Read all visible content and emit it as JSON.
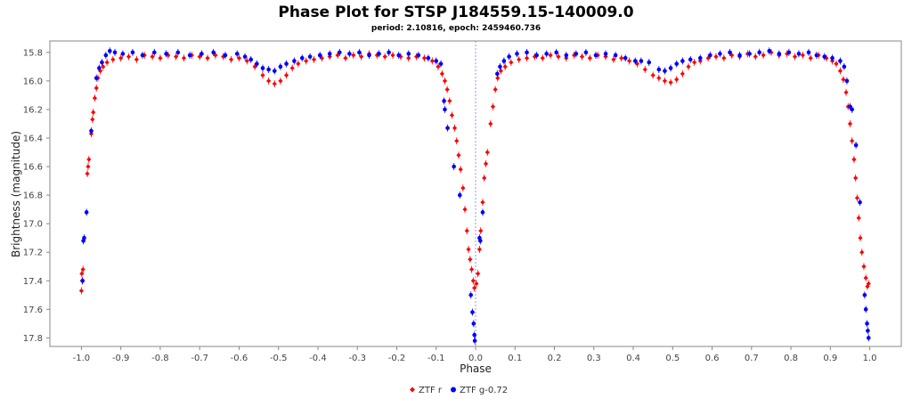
{
  "chart_data": {
    "type": "scatter",
    "title": "Phase Plot for STSP J184559.15-140009.0",
    "subtitle": "period: 2.10816, epoch: 2459460.736",
    "xlabel": "Phase",
    "ylabel": "Brightness (magnitude)",
    "xlim": [
      -1.08,
      1.08
    ],
    "ylim": [
      15.72,
      17.86
    ],
    "y_inverted": true,
    "x_ticks": [
      "-1.0",
      "-0.9",
      "-0.8",
      "-0.7",
      "-0.6",
      "-0.5",
      "-0.4",
      "-0.3",
      "-0.2",
      "-0.1",
      "0.0",
      "0.1",
      "0.2",
      "0.3",
      "0.4",
      "0.5",
      "0.6",
      "0.7",
      "0.8",
      "0.9",
      "1.0"
    ],
    "y_ticks": [
      "15.8",
      "16.0",
      "16.2",
      "16.4",
      "16.6",
      "16.8",
      "17.0",
      "17.2",
      "17.4",
      "17.6",
      "17.8"
    ],
    "grid": false,
    "zero_line": true,
    "legend_position": "bottom-center",
    "series": [
      {
        "name": "ZTF r",
        "color": "#ff0000",
        "shape": "diamond",
        "points": [
          [
            -1.0,
            17.47
          ],
          [
            -0.999,
            17.35
          ],
          [
            -0.998,
            17.4
          ],
          [
            -0.996,
            17.32
          ],
          [
            -0.985,
            16.65
          ],
          [
            -0.983,
            16.6
          ],
          [
            -0.981,
            16.55
          ],
          [
            -0.975,
            16.37
          ],
          [
            -0.972,
            16.27
          ],
          [
            -0.97,
            16.22
          ],
          [
            -0.966,
            16.12
          ],
          [
            -0.962,
            16.05
          ],
          [
            -0.958,
            15.98
          ],
          [
            -0.952,
            15.93
          ],
          [
            -0.945,
            15.9
          ],
          [
            -0.935,
            15.87
          ],
          [
            -0.92,
            15.85
          ],
          [
            -0.9,
            15.84
          ],
          [
            -0.88,
            15.83
          ],
          [
            -0.86,
            15.85
          ],
          [
            -0.84,
            15.82
          ],
          [
            -0.82,
            15.83
          ],
          [
            -0.8,
            15.84
          ],
          [
            -0.78,
            15.82
          ],
          [
            -0.76,
            15.83
          ],
          [
            -0.74,
            15.84
          ],
          [
            -0.72,
            15.82
          ],
          [
            -0.7,
            15.83
          ],
          [
            -0.68,
            15.84
          ],
          [
            -0.66,
            15.82
          ],
          [
            -0.64,
            15.83
          ],
          [
            -0.62,
            15.85
          ],
          [
            -0.6,
            15.84
          ],
          [
            -0.58,
            15.86
          ],
          [
            -0.56,
            15.9
          ],
          [
            -0.54,
            15.96
          ],
          [
            -0.525,
            16.0
          ],
          [
            -0.51,
            16.02
          ],
          [
            -0.495,
            16.0
          ],
          [
            -0.48,
            15.96
          ],
          [
            -0.465,
            15.91
          ],
          [
            -0.45,
            15.88
          ],
          [
            -0.43,
            15.86
          ],
          [
            -0.41,
            15.85
          ],
          [
            -0.39,
            15.84
          ],
          [
            -0.37,
            15.83
          ],
          [
            -0.35,
            15.82
          ],
          [
            -0.33,
            15.84
          ],
          [
            -0.31,
            15.82
          ],
          [
            -0.29,
            15.83
          ],
          [
            -0.27,
            15.81
          ],
          [
            -0.25,
            15.82
          ],
          [
            -0.23,
            15.83
          ],
          [
            -0.21,
            15.82
          ],
          [
            -0.19,
            15.83
          ],
          [
            -0.17,
            15.84
          ],
          [
            -0.15,
            15.83
          ],
          [
            -0.13,
            15.84
          ],
          [
            -0.11,
            15.86
          ],
          [
            -0.095,
            15.9
          ],
          [
            -0.085,
            15.95
          ],
          [
            -0.078,
            16.0
          ],
          [
            -0.072,
            16.06
          ],
          [
            -0.066,
            16.14
          ],
          [
            -0.06,
            16.24
          ],
          [
            -0.053,
            16.33
          ],
          [
            -0.048,
            16.42
          ],
          [
            -0.043,
            16.52
          ],
          [
            -0.038,
            16.62
          ],
          [
            -0.032,
            16.75
          ],
          [
            -0.027,
            16.9
          ],
          [
            -0.022,
            17.05
          ],
          [
            -0.018,
            17.18
          ],
          [
            -0.014,
            17.25
          ],
          [
            -0.01,
            17.32
          ],
          [
            -0.006,
            17.4
          ],
          [
            -0.003,
            17.45
          ],
          [
            0.002,
            17.42
          ],
          [
            0.006,
            17.35
          ],
          [
            0.01,
            17.18
          ],
          [
            0.013,
            17.05
          ],
          [
            0.018,
            16.85
          ],
          [
            0.022,
            16.68
          ],
          [
            0.026,
            16.58
          ],
          [
            0.03,
            16.5
          ],
          [
            0.038,
            16.3
          ],
          [
            0.044,
            16.18
          ],
          [
            0.05,
            16.06
          ],
          [
            0.056,
            15.98
          ],
          [
            0.064,
            15.93
          ],
          [
            0.075,
            15.9
          ],
          [
            0.09,
            15.87
          ],
          [
            0.11,
            15.85
          ],
          [
            0.13,
            15.84
          ],
          [
            0.15,
            15.83
          ],
          [
            0.17,
            15.84
          ],
          [
            0.19,
            15.82
          ],
          [
            0.21,
            15.83
          ],
          [
            0.23,
            15.84
          ],
          [
            0.25,
            15.82
          ],
          [
            0.27,
            15.83
          ],
          [
            0.29,
            15.84
          ],
          [
            0.31,
            15.82
          ],
          [
            0.33,
            15.83
          ],
          [
            0.35,
            15.85
          ],
          [
            0.37,
            15.84
          ],
          [
            0.39,
            15.86
          ],
          [
            0.41,
            15.88
          ],
          [
            0.43,
            15.92
          ],
          [
            0.45,
            15.96
          ],
          [
            0.465,
            15.98
          ],
          [
            0.48,
            16.0
          ],
          [
            0.495,
            16.01
          ],
          [
            0.51,
            15.99
          ],
          [
            0.525,
            15.95
          ],
          [
            0.54,
            15.9
          ],
          [
            0.555,
            15.87
          ],
          [
            0.57,
            15.86
          ],
          [
            0.59,
            15.84
          ],
          [
            0.61,
            15.83
          ],
          [
            0.63,
            15.84
          ],
          [
            0.65,
            15.82
          ],
          [
            0.67,
            15.83
          ],
          [
            0.69,
            15.81
          ],
          [
            0.71,
            15.83
          ],
          [
            0.73,
            15.82
          ],
          [
            0.75,
            15.8
          ],
          [
            0.77,
            15.82
          ],
          [
            0.79,
            15.81
          ],
          [
            0.81,
            15.83
          ],
          [
            0.83,
            15.82
          ],
          [
            0.85,
            15.84
          ],
          [
            0.87,
            15.82
          ],
          [
            0.89,
            15.84
          ],
          [
            0.905,
            15.86
          ],
          [
            0.915,
            15.88
          ],
          [
            0.925,
            15.93
          ],
          [
            0.933,
            15.99
          ],
          [
            0.94,
            16.08
          ],
          [
            0.945,
            16.18
          ],
          [
            0.95,
            16.3
          ],
          [
            0.955,
            16.42
          ],
          [
            0.96,
            16.55
          ],
          [
            0.964,
            16.68
          ],
          [
            0.968,
            16.82
          ],
          [
            0.972,
            16.96
          ],
          [
            0.976,
            17.1
          ],
          [
            0.98,
            17.2
          ],
          [
            0.985,
            17.3
          ],
          [
            0.99,
            17.38
          ],
          [
            0.994,
            17.44
          ],
          [
            0.997,
            17.42
          ]
        ]
      },
      {
        "name": "ZTF g-0.72",
        "color": "#0000ff",
        "shape": "circle",
        "points": [
          [
            -0.997,
            17.4
          ],
          [
            -0.995,
            17.12
          ],
          [
            -0.993,
            17.1
          ],
          [
            -0.987,
            16.92
          ],
          [
            -0.975,
            16.35
          ],
          [
            -0.962,
            15.98
          ],
          [
            -0.955,
            15.91
          ],
          [
            -0.948,
            15.87
          ],
          [
            -0.938,
            15.82
          ],
          [
            -0.928,
            15.79
          ],
          [
            -0.915,
            15.8
          ],
          [
            -0.895,
            15.81
          ],
          [
            -0.87,
            15.8
          ],
          [
            -0.845,
            15.82
          ],
          [
            -0.815,
            15.8
          ],
          [
            -0.785,
            15.81
          ],
          [
            -0.755,
            15.8
          ],
          [
            -0.725,
            15.82
          ],
          [
            -0.695,
            15.81
          ],
          [
            -0.665,
            15.8
          ],
          [
            -0.635,
            15.82
          ],
          [
            -0.605,
            15.81
          ],
          [
            -0.585,
            15.83
          ],
          [
            -0.57,
            15.85
          ],
          [
            -0.555,
            15.88
          ],
          [
            -0.54,
            15.91
          ],
          [
            -0.525,
            15.92
          ],
          [
            -0.51,
            15.93
          ],
          [
            -0.495,
            15.9
          ],
          [
            -0.48,
            15.88
          ],
          [
            -0.46,
            15.86
          ],
          [
            -0.44,
            15.84
          ],
          [
            -0.42,
            15.83
          ],
          [
            -0.395,
            15.82
          ],
          [
            -0.37,
            15.81
          ],
          [
            -0.345,
            15.8
          ],
          [
            -0.32,
            15.81
          ],
          [
            -0.295,
            15.8
          ],
          [
            -0.27,
            15.82
          ],
          [
            -0.245,
            15.81
          ],
          [
            -0.22,
            15.8
          ],
          [
            -0.195,
            15.82
          ],
          [
            -0.17,
            15.81
          ],
          [
            -0.145,
            15.82
          ],
          [
            -0.12,
            15.84
          ],
          [
            -0.1,
            15.86
          ],
          [
            -0.088,
            15.88
          ],
          [
            -0.08,
            16.14
          ],
          [
            -0.078,
            16.2
          ],
          [
            -0.071,
            16.33
          ],
          [
            -0.055,
            16.6
          ],
          [
            -0.04,
            16.8
          ],
          [
            -0.012,
            17.5
          ],
          [
            -0.008,
            17.62
          ],
          [
            -0.005,
            17.7
          ],
          [
            -0.003,
            17.78
          ],
          [
            -0.002,
            17.82
          ],
          [
            0.01,
            17.1
          ],
          [
            0.012,
            17.12
          ],
          [
            0.018,
            16.92
          ],
          [
            0.055,
            15.95
          ],
          [
            0.062,
            15.9
          ],
          [
            0.072,
            15.86
          ],
          [
            0.085,
            15.83
          ],
          [
            0.105,
            15.81
          ],
          [
            0.13,
            15.8
          ],
          [
            0.155,
            15.82
          ],
          [
            0.18,
            15.81
          ],
          [
            0.205,
            15.8
          ],
          [
            0.23,
            15.82
          ],
          [
            0.255,
            15.81
          ],
          [
            0.28,
            15.8
          ],
          [
            0.305,
            15.82
          ],
          [
            0.33,
            15.81
          ],
          [
            0.355,
            15.82
          ],
          [
            0.38,
            15.84
          ],
          [
            0.405,
            15.86
          ],
          [
            0.42,
            15.86
          ],
          [
            0.44,
            15.87
          ],
          [
            0.465,
            15.92
          ],
          [
            0.48,
            15.93
          ],
          [
            0.495,
            15.91
          ],
          [
            0.51,
            15.88
          ],
          [
            0.525,
            15.86
          ],
          [
            0.545,
            15.85
          ],
          [
            0.57,
            15.84
          ],
          [
            0.595,
            15.82
          ],
          [
            0.62,
            15.81
          ],
          [
            0.645,
            15.8
          ],
          [
            0.67,
            15.82
          ],
          [
            0.695,
            15.81
          ],
          [
            0.72,
            15.8
          ],
          [
            0.745,
            15.79
          ],
          [
            0.77,
            15.81
          ],
          [
            0.795,
            15.8
          ],
          [
            0.82,
            15.81
          ],
          [
            0.845,
            15.8
          ],
          [
            0.865,
            15.82
          ],
          [
            0.885,
            15.83
          ],
          [
            0.905,
            15.84
          ],
          [
            0.925,
            15.86
          ],
          [
            0.935,
            15.9
          ],
          [
            0.942,
            16.0
          ],
          [
            0.95,
            16.18
          ],
          [
            0.955,
            16.2
          ],
          [
            0.965,
            16.45
          ],
          [
            0.975,
            16.85
          ],
          [
            0.987,
            17.5
          ],
          [
            0.99,
            17.6
          ],
          [
            0.993,
            17.7
          ],
          [
            0.995,
            17.75
          ],
          [
            0.997,
            17.8
          ]
        ]
      }
    ]
  }
}
